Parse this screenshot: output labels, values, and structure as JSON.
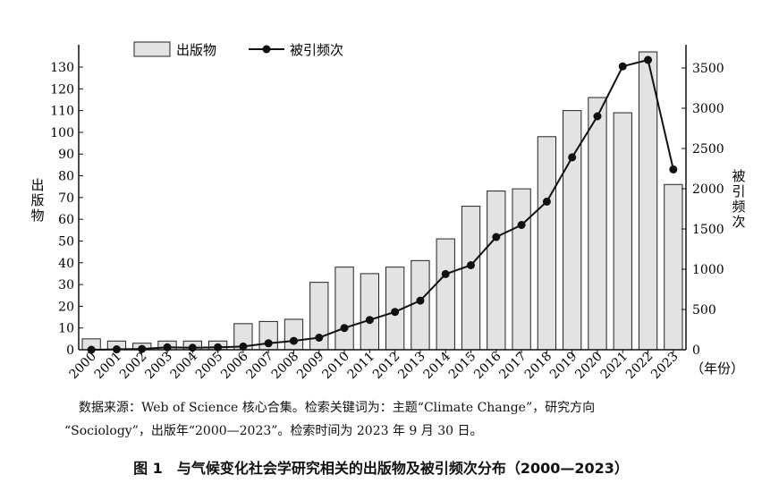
{
  "chart_data": {
    "type": "bar+line",
    "categories": [
      "2000",
      "2001",
      "2002",
      "2003",
      "2004",
      "2005",
      "2006",
      "2007",
      "2008",
      "2009",
      "2010",
      "2011",
      "2012",
      "2013",
      "2014",
      "2015",
      "2016",
      "2017",
      "2018",
      "2019",
      "2020",
      "2021",
      "2022",
      "2023"
    ],
    "series": [
      {
        "name": "出版物",
        "type": "bar",
        "axis": "left",
        "values": [
          5,
          4,
          3,
          4,
          4,
          4,
          12,
          13,
          14,
          31,
          38,
          35,
          38,
          41,
          51,
          66,
          73,
          74,
          98,
          110,
          116,
          109,
          137,
          76
        ]
      },
      {
        "name": "被引频次",
        "type": "line",
        "axis": "right",
        "values": [
          0,
          5,
          10,
          30,
          25,
          30,
          40,
          80,
          110,
          150,
          270,
          370,
          470,
          610,
          940,
          1050,
          1400,
          1550,
          1840,
          2390,
          2900,
          3520,
          3600,
          2240
        ]
      }
    ],
    "left_axis": {
      "label": "出版物",
      "min": 0,
      "max": 137,
      "ticks": [
        0,
        10,
        20,
        30,
        40,
        50,
        60,
        70,
        80,
        90,
        100,
        110,
        120,
        130
      ]
    },
    "right_axis": {
      "label": "被引频次",
      "min": 0,
      "max": 3700,
      "ticks": [
        0,
        500,
        1000,
        1500,
        2000,
        2500,
        3000,
        3500
      ]
    },
    "x_axis_label": "（年份）",
    "legend": {
      "position": "top"
    },
    "grid": false
  },
  "source_line_1": "数据来源：Web of Science 核心合集。检索关键词为：主题“Climate Change”，研究方向",
  "source_line_2": "“Sociology”，出版年“2000—2023”。检索时间为 2023 年 9 月 30 日。",
  "caption": "图 1　与气候变化社会学研究相关的出版物及被引频次分布（2000—2023）"
}
